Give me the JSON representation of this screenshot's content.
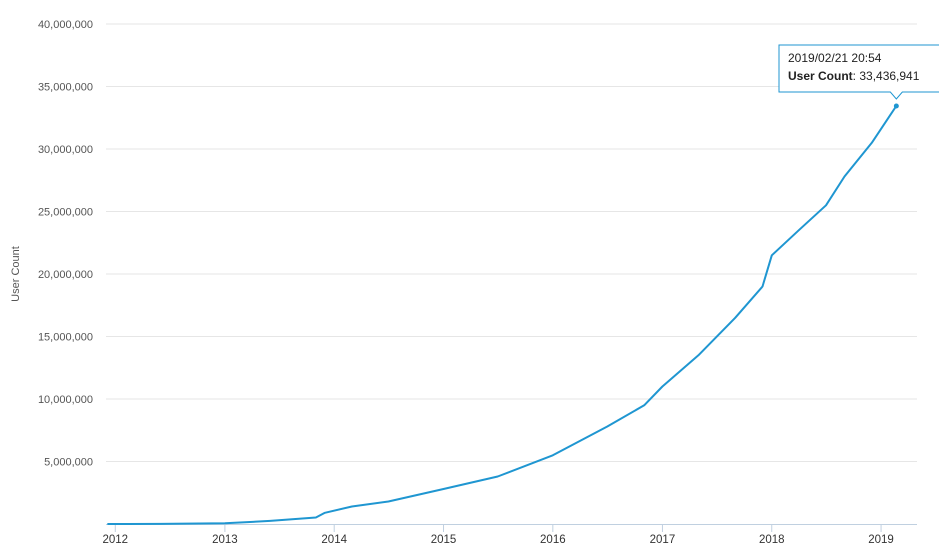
{
  "chart_data": {
    "type": "line",
    "title": "",
    "xlabel": "",
    "ylabel": "User Count",
    "ylim": [
      0,
      40000000
    ],
    "xlim": [
      "2011-12-01",
      "2019-05-01"
    ],
    "y_ticks": [
      {
        "value": 5000000,
        "label": "5,000,000"
      },
      {
        "value": 10000000,
        "label": "10,000,000"
      },
      {
        "value": 15000000,
        "label": "15,000,000"
      },
      {
        "value": 20000000,
        "label": "20,000,000"
      },
      {
        "value": 25000000,
        "label": "25,000,000"
      },
      {
        "value": 30000000,
        "label": "30,000,000"
      },
      {
        "value": 35000000,
        "label": "35,000,000"
      },
      {
        "value": 40000000,
        "label": "40,000,000"
      }
    ],
    "x_ticks": [
      {
        "value": "2012-01-01",
        "label": "2012"
      },
      {
        "value": "2013-01-01",
        "label": "2013"
      },
      {
        "value": "2014-01-01",
        "label": "2014"
      },
      {
        "value": "2015-01-01",
        "label": "2015"
      },
      {
        "value": "2016-01-01",
        "label": "2016"
      },
      {
        "value": "2017-01-01",
        "label": "2017"
      },
      {
        "value": "2018-01-01",
        "label": "2018"
      },
      {
        "value": "2019-01-01",
        "label": "2019"
      }
    ],
    "grid": true,
    "colors": {
      "line": "#1f96d1",
      "grid": "#e6e6e6",
      "axis": "#c0d0e0"
    },
    "series": [
      {
        "points": [
          {
            "x": "2011-12-08",
            "y": 0
          },
          {
            "x": "2012-06-01",
            "y": 10000
          },
          {
            "x": "2013-01-01",
            "y": 60000
          },
          {
            "x": "2013-06-01",
            "y": 250000
          },
          {
            "x": "2013-11-01",
            "y": 520000
          },
          {
            "x": "2013-12-01",
            "y": 900000
          },
          {
            "x": "2014-03-01",
            "y": 1400000
          },
          {
            "x": "2014-07-01",
            "y": 1800000
          },
          {
            "x": "2015-01-01",
            "y": 2800000
          },
          {
            "x": "2015-07-01",
            "y": 3800000
          },
          {
            "x": "2016-01-01",
            "y": 5500000
          },
          {
            "x": "2016-07-01",
            "y": 7800000
          },
          {
            "x": "2016-11-01",
            "y": 9500000
          },
          {
            "x": "2017-01-01",
            "y": 11000000
          },
          {
            "x": "2017-05-01",
            "y": 13500000
          },
          {
            "x": "2017-09-01",
            "y": 16500000
          },
          {
            "x": "2017-12-01",
            "y": 19000000
          },
          {
            "x": "2018-01-01",
            "y": 21500000
          },
          {
            "x": "2018-04-01",
            "y": 23500000
          },
          {
            "x": "2018-07-01",
            "y": 25500000
          },
          {
            "x": "2018-09-01",
            "y": 27800000
          },
          {
            "x": "2018-12-01",
            "y": 30500000
          },
          {
            "x": "2019-02-21",
            "y": 33436941
          }
        ]
      }
    ],
    "tooltip": {
      "title": "2019/02/21 20:54",
      "label": "User Count",
      "value": "33,436,941",
      "point": {
        "x": "2019-02-21",
        "y": 33436941
      }
    }
  }
}
